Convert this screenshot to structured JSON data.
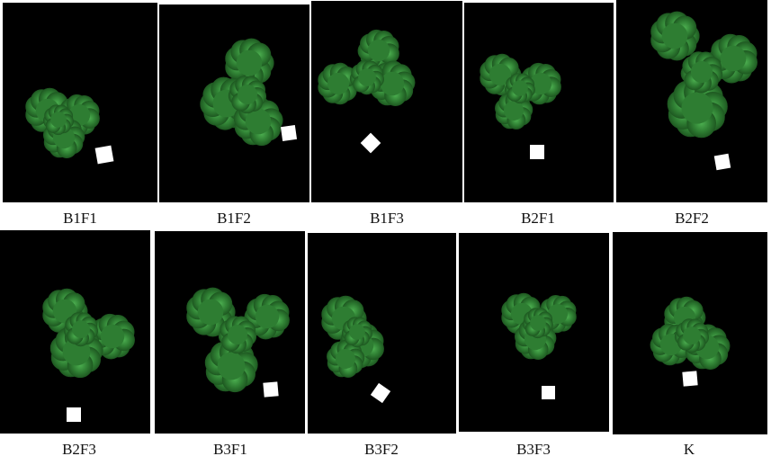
{
  "panels": [
    {
      "label": "B1F1"
    },
    {
      "label": "B1F2"
    },
    {
      "label": "B1F3"
    },
    {
      "label": "B2F1"
    },
    {
      "label": "B2F2"
    },
    {
      "label": "B2F3"
    },
    {
      "label": "B3F1"
    },
    {
      "label": "B3F2"
    },
    {
      "label": "B3F3"
    },
    {
      "label": "K"
    }
  ],
  "colors": {
    "background": "#000000",
    "leaf_dark": "#1f5a22",
    "leaf_mid": "#2e7d32",
    "leaf_light": "#4caf50",
    "marker": "#ffffff"
  }
}
